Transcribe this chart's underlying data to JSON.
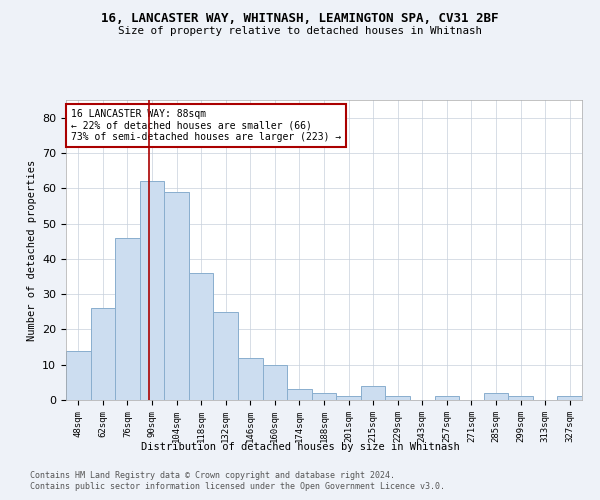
{
  "title_line1": "16, LANCASTER WAY, WHITNASH, LEAMINGTON SPA, CV31 2BF",
  "title_line2": "Size of property relative to detached houses in Whitnash",
  "xlabel": "Distribution of detached houses by size in Whitnash",
  "ylabel": "Number of detached properties",
  "categories": [
    "48sqm",
    "62sqm",
    "76sqm",
    "90sqm",
    "104sqm",
    "118sqm",
    "132sqm",
    "146sqm",
    "160sqm",
    "174sqm",
    "188sqm",
    "201sqm",
    "215sqm",
    "229sqm",
    "243sqm",
    "257sqm",
    "271sqm",
    "285sqm",
    "299sqm",
    "313sqm",
    "327sqm"
  ],
  "values": [
    14,
    26,
    46,
    62,
    59,
    36,
    25,
    12,
    10,
    3,
    2,
    1,
    4,
    1,
    0,
    1,
    0,
    2,
    1,
    0,
    1
  ],
  "bar_color": "#ccddf0",
  "bar_edge_color": "#89aece",
  "ylim": [
    0,
    85
  ],
  "yticks": [
    0,
    10,
    20,
    30,
    40,
    50,
    60,
    70,
    80
  ],
  "vline_x": 2.86,
  "vline_color": "#aa0000",
  "annotation_text": "16 LANCASTER WAY: 88sqm\n← 22% of detached houses are smaller (66)\n73% of semi-detached houses are larger (223) →",
  "annotation_box_color": "#aa0000",
  "footer_line1": "Contains HM Land Registry data © Crown copyright and database right 2024.",
  "footer_line2": "Contains public sector information licensed under the Open Government Licence v3.0.",
  "background_color": "#eef2f8",
  "plot_bg_color": "#ffffff",
  "grid_color": "#c8d0dc"
}
